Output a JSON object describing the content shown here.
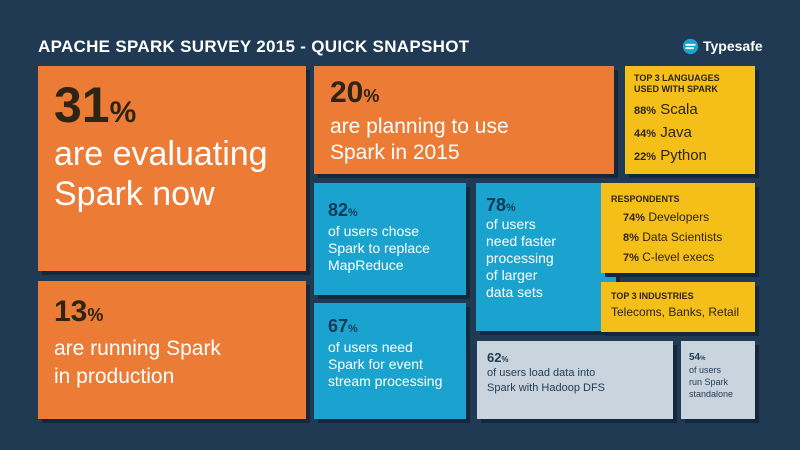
{
  "header": {
    "title": "APACHE SPARK SURVEY 2015 - QUICK SNAPSHOT",
    "logo_text": "Typesafe"
  },
  "tiles": {
    "evaluating": {
      "number": "31",
      "unit": "%",
      "lines": [
        "are evaluating",
        "Spark now"
      ]
    },
    "production": {
      "number": "13",
      "unit": "%",
      "lines": [
        "are running Spark",
        "in production"
      ]
    },
    "planning": {
      "number": "20",
      "unit": "%",
      "lines": [
        "are planning to use",
        "Spark in 2015"
      ]
    },
    "mapreduce": {
      "number": "82",
      "unit": "%",
      "lines": [
        "of users chose",
        "Spark to replace",
        "MapReduce"
      ]
    },
    "faster": {
      "number": "78",
      "unit": "%",
      "lines": [
        "of users",
        "need faster",
        "processing",
        "of larger",
        "data sets"
      ]
    },
    "event_stream": {
      "number": "67",
      "unit": "%",
      "lines": [
        "of users need",
        "Spark for event",
        "stream processing"
      ]
    },
    "hadoop": {
      "number": "62",
      "unit": "%",
      "lines": [
        "of users load data into",
        "Spark with Hadoop DFS"
      ]
    },
    "standalone": {
      "number": "54",
      "unit": "%",
      "lines": [
        "of users",
        "run Spark",
        "standalone"
      ]
    }
  },
  "languages": {
    "header_lines": [
      "TOP 3 LANGUAGES",
      "USED WITH SPARK"
    ],
    "items": [
      {
        "value": "88",
        "unit": "%",
        "name": "Scala"
      },
      {
        "value": "44",
        "unit": "%",
        "name": "Java"
      },
      {
        "value": "22",
        "unit": "%",
        "name": "Python"
      }
    ]
  },
  "respondents": {
    "header": "RESPONDENTS",
    "items": [
      {
        "value": "74",
        "unit": "%",
        "name": "Developers"
      },
      {
        "value": "8",
        "unit": "%",
        "name": "Data Scientists"
      },
      {
        "value": "7",
        "unit": "%",
        "name": "C-level execs"
      }
    ]
  },
  "industries": {
    "header": "TOP 3 INDUSTRIES",
    "text": "Telecoms, Banks, Retail"
  },
  "colors": {
    "background": "#1f3a52",
    "orange": "#ec7b36",
    "blue": "#1ba3cf",
    "yellow": "#f5bf1a",
    "grey": "#c9d4de"
  }
}
